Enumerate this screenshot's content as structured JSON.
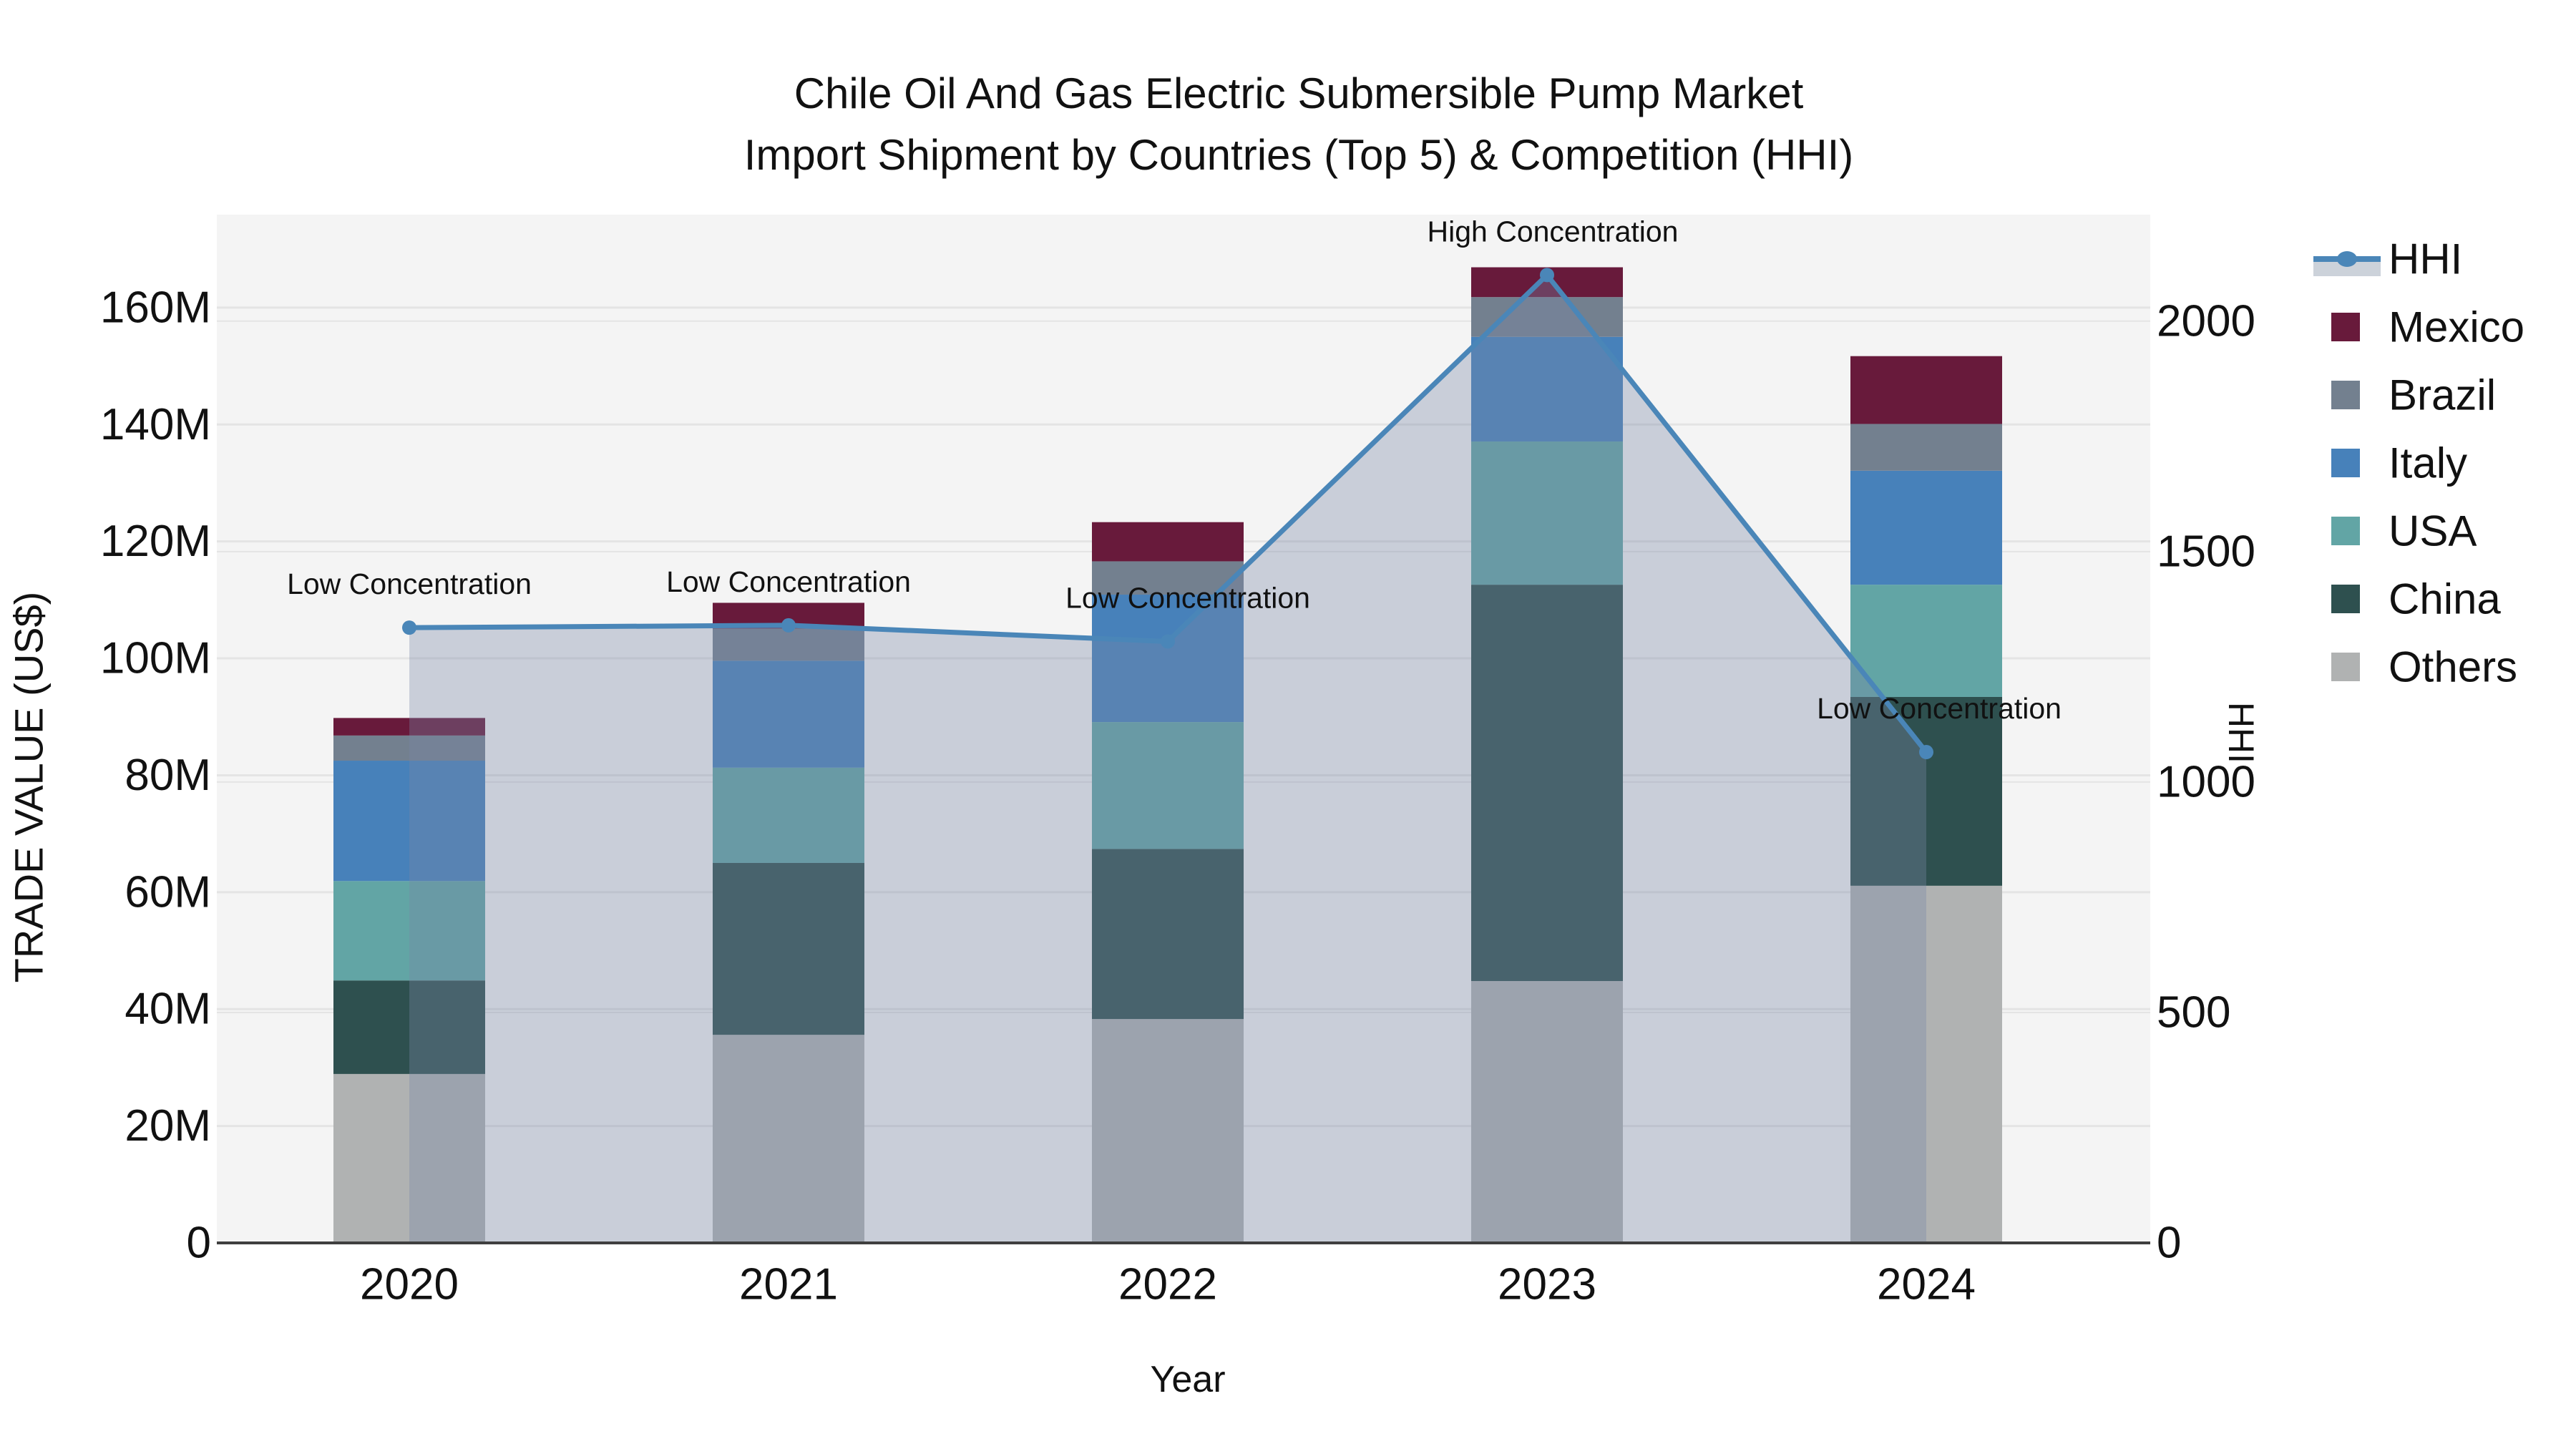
{
  "title": {
    "line1": "Chile Oil And Gas Electric Submersible Pump Market",
    "line2": "Import Shipment by Countries (Top 5) & Competition (HHI)"
  },
  "colors": {
    "hhi_line": "#4a86b8",
    "hhi_area": "rgba(121,135,167,0.35)",
    "mexico": "#681a3b",
    "brazil": "#73808f",
    "italy": "#4781ba",
    "usa": "#62a5a5",
    "china": "#2e504f",
    "others": "#b0b2b2",
    "plot_bg": "#f4f4f4",
    "gridline": "#e4e4e4",
    "axis_line": "#3f3f3f",
    "legend_area_band": "#ccd2da",
    "text": "#111111"
  },
  "legend": {
    "items": [
      {
        "label": "HHI",
        "type": "line",
        "color": "#4a86b8"
      },
      {
        "label": "Mexico",
        "type": "swatch",
        "color": "#681a3b"
      },
      {
        "label": "Brazil",
        "type": "swatch",
        "color": "#73808f"
      },
      {
        "label": "Italy",
        "type": "swatch",
        "color": "#4781ba"
      },
      {
        "label": "USA",
        "type": "swatch",
        "color": "#62a5a5"
      },
      {
        "label": "China",
        "type": "swatch",
        "color": "#2e504f"
      },
      {
        "label": "Others",
        "type": "swatch",
        "color": "#b0b2b2"
      }
    ]
  },
  "chart_data": {
    "type": "bar+line",
    "title": "Chile Oil And Gas Electric Submersible Pump Market Import Shipment by Countries (Top 5) & Competition (HHI)",
    "categories": [
      "2020",
      "2021",
      "2022",
      "2023",
      "2024"
    ],
    "x_axis": {
      "title": "Year"
    },
    "left_axis": {
      "title": "TRADE VALUE (US$)",
      "unit": "M US$",
      "max": 175.9,
      "ticks": [
        {
          "label": "0",
          "value": 0
        },
        {
          "label": "20M",
          "value": 20
        },
        {
          "label": "40M",
          "value": 40
        },
        {
          "label": "60M",
          "value": 60
        },
        {
          "label": "80M",
          "value": 80
        },
        {
          "label": "100M",
          "value": 100
        },
        {
          "label": "120M",
          "value": 120
        },
        {
          "label": "140M",
          "value": 140
        },
        {
          "label": "160M",
          "value": 160
        }
      ]
    },
    "right_axis": {
      "title": "HHI",
      "max": 2231,
      "ticks": [
        {
          "label": "0",
          "value": 0
        },
        {
          "label": "500",
          "value": 500
        },
        {
          "label": "1000",
          "value": 1000
        },
        {
          "label": "1500",
          "value": 1500
        },
        {
          "label": "2000",
          "value": 2000
        }
      ]
    },
    "series": [
      {
        "name": "Others",
        "color_key": "others",
        "values": [
          28.9,
          35.6,
          38.3,
          44.8,
          61.1
        ]
      },
      {
        "name": "China",
        "color_key": "china",
        "values": [
          16.0,
          29.4,
          29.1,
          67.8,
          32.3
        ]
      },
      {
        "name": "USA",
        "color_key": "usa",
        "values": [
          17.0,
          16.3,
          21.7,
          24.5,
          19.2
        ]
      },
      {
        "name": "Italy",
        "color_key": "italy",
        "values": [
          20.6,
          18.3,
          21.8,
          17.9,
          19.5
        ]
      },
      {
        "name": "Brazil",
        "color_key": "brazil",
        "values": [
          4.3,
          5.5,
          5.7,
          6.8,
          8.0
        ]
      },
      {
        "name": "Mexico",
        "color_key": "mexico",
        "values": [
          3.0,
          4.4,
          6.7,
          5.1,
          11.6
        ]
      }
    ],
    "bar_totals": [
      89.8,
      109.5,
      123.3,
      166.9,
      151.7
    ],
    "hhi_line": {
      "name": "HHI",
      "values": [
        1335,
        1340,
        1305,
        2100,
        1065
      ]
    },
    "annotations": [
      {
        "text": "Low Concentration",
        "dx": 0
      },
      {
        "text": "Low Concentration",
        "dx": 0
      },
      {
        "text": "Low Concentration",
        "dx": 28
      },
      {
        "text": "High Concentration",
        "dx": 8
      },
      {
        "text": "Low Concentration",
        "dx": 18
      }
    ],
    "legend_position": "right",
    "grid": true
  }
}
